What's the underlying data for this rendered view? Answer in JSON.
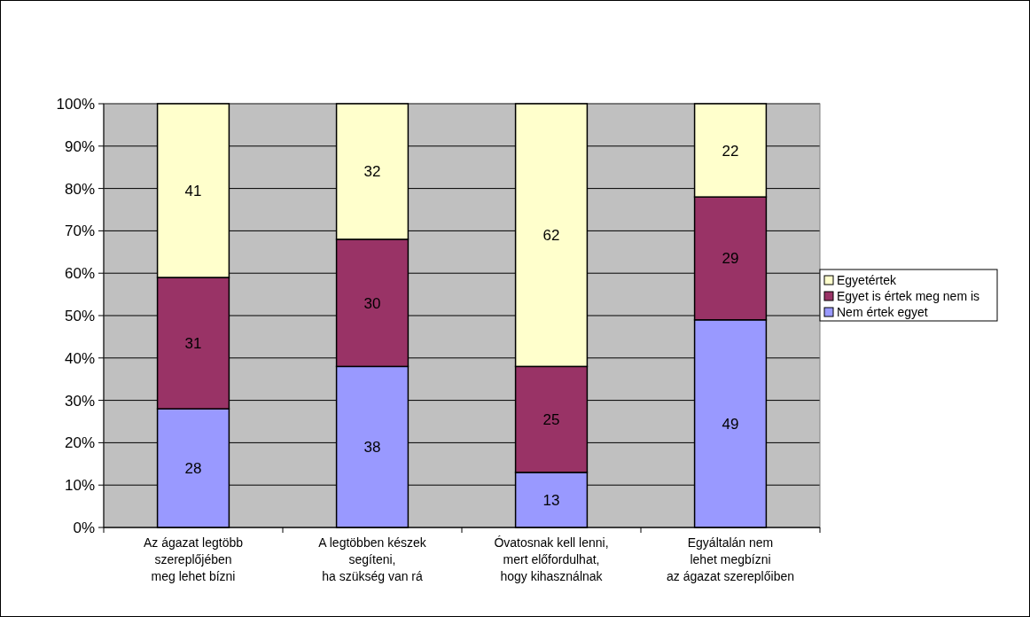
{
  "chart_data": {
    "type": "bar",
    "stacked": true,
    "categories": [
      "Az ágazat legtöbb\nszereplőjében\nmeg lehet bízni",
      "A legtöbben készek\nsegíteni,\nha szükség van rá",
      "Óvatosnak kell lenni,\nmert előfordulhat,\nhogy kihasználnak",
      "Egyáltalán nem\nlehet megbízni\naz ágazat szereplőiben"
    ],
    "series": [
      {
        "name": "Nem értek egyet",
        "color": "#9999ff",
        "values": [
          28,
          38,
          13,
          49
        ]
      },
      {
        "name": "Egyet is értek meg nem is",
        "color": "#993366",
        "values": [
          31,
          30,
          25,
          29
        ]
      },
      {
        "name": "Egyetértek",
        "color": "#ffffcc",
        "values": [
          41,
          32,
          62,
          22
        ]
      }
    ],
    "ylim": [
      0,
      100
    ],
    "yticks": [
      {
        "value": 0,
        "label": "0%"
      },
      {
        "value": 10,
        "label": "10%"
      },
      {
        "value": 20,
        "label": "20%"
      },
      {
        "value": 30,
        "label": "30%"
      },
      {
        "value": 40,
        "label": "40%"
      },
      {
        "value": 50,
        "label": "50%"
      },
      {
        "value": 60,
        "label": "60%"
      },
      {
        "value": 70,
        "label": "70%"
      },
      {
        "value": 80,
        "label": "80%"
      },
      {
        "value": 90,
        "label": "90%"
      },
      {
        "value": 100,
        "label": "100%"
      }
    ],
    "grid": "y",
    "legend": "right",
    "data_labels": true
  }
}
